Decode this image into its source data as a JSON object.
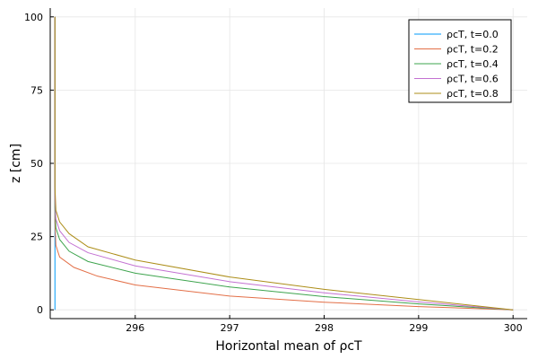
{
  "chart_data": {
    "type": "line",
    "xlabel": "Horizontal mean of ρcT",
    "ylabel": "z [cm]",
    "xlim": [
      295.1,
      300.15
    ],
    "ylim": [
      -3,
      103
    ],
    "xticks": [
      296,
      297,
      298,
      299,
      300
    ],
    "yticks": [
      0,
      25,
      50,
      75,
      100
    ],
    "grid": true,
    "legend_position": "top-right",
    "series": [
      {
        "name": "ρcT, t=0.0",
        "color": "#009AFA",
        "x": [
          295.15,
          295.15,
          295.15,
          295.15,
          295.15,
          295.15
        ],
        "y": [
          0,
          20,
          40,
          60,
          80,
          100
        ]
      },
      {
        "name": "ρcT, t=0.2",
        "color": "#E36F47",
        "x": [
          300.0,
          299.0,
          298.0,
          297.0,
          296.0,
          295.6,
          295.35,
          295.2,
          295.16,
          295.15,
          295.15,
          295.15
        ],
        "y": [
          0,
          1.1,
          2.6,
          4.7,
          8.5,
          11.5,
          14.5,
          18,
          22,
          30,
          60,
          100
        ]
      },
      {
        "name": "ρcT, t=0.4",
        "color": "#3EA44E",
        "x": [
          300.0,
          299.0,
          298.0,
          297.0,
          296.0,
          295.5,
          295.3,
          295.2,
          295.16,
          295.15,
          295.15,
          295.15
        ],
        "y": [
          0,
          2.0,
          4.5,
          7.8,
          12.5,
          16.5,
          20,
          24,
          28,
          35,
          60,
          100
        ]
      },
      {
        "name": "ρcT, t=0.6",
        "color": "#C371D2",
        "x": [
          300.0,
          299.0,
          298.0,
          297.0,
          296.0,
          295.5,
          295.3,
          295.2,
          295.16,
          295.15,
          295.15,
          295.15
        ],
        "y": [
          0,
          2.7,
          5.8,
          9.6,
          15.0,
          19.5,
          23,
          27,
          31,
          38,
          60,
          100
        ]
      },
      {
        "name": "ρcT, t=0.8",
        "color": "#AC8D18",
        "x": [
          300.0,
          299.0,
          298.0,
          297.0,
          296.0,
          295.5,
          295.3,
          295.2,
          295.16,
          295.15,
          295.15,
          295.15
        ],
        "y": [
          0,
          3.5,
          7.0,
          11.2,
          17.0,
          21.5,
          26,
          30,
          34,
          42,
          60,
          100
        ]
      }
    ]
  }
}
